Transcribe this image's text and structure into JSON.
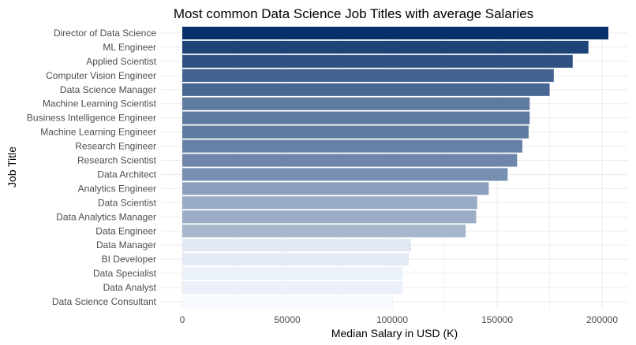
{
  "chart_data": {
    "type": "bar",
    "orientation": "horizontal",
    "title": "Most common Data Science Job Titles with average Salaries",
    "xlabel": "Median Salary in USD (K)",
    "ylabel": "Job Title",
    "xlim": [
      0,
      212000
    ],
    "xticks": [
      0,
      50000,
      100000,
      150000,
      200000
    ],
    "xtick_labels": [
      "0",
      "50000",
      "100000",
      "150000",
      "200000"
    ],
    "grid": true,
    "legend": "none",
    "color_scale": [
      "#f7fbff",
      "#08306b"
    ],
    "categories": [
      "Director of Data Science",
      "ML Engineer",
      "Applied Scientist",
      "Computer Vision Engineer",
      "Data Science Manager",
      "Machine Learning Scientist",
      "Business Intelligence Engineer",
      "Machine Learning Engineer",
      "Research Engineer",
      "Research Scientist",
      "Data Architect",
      "Analytics Engineer",
      "Data Scientist",
      "Data Analytics Manager",
      "Data Engineer",
      "Data Manager",
      "BI Developer",
      "Data Specialist",
      "Data Analyst",
      "Data Science Consultant"
    ],
    "values": [
      203000,
      193500,
      186000,
      177000,
      175000,
      165500,
      165500,
      165000,
      162000,
      159500,
      155000,
      146000,
      140500,
      140000,
      135000,
      109000,
      108000,
      105000,
      105000,
      100000
    ]
  }
}
